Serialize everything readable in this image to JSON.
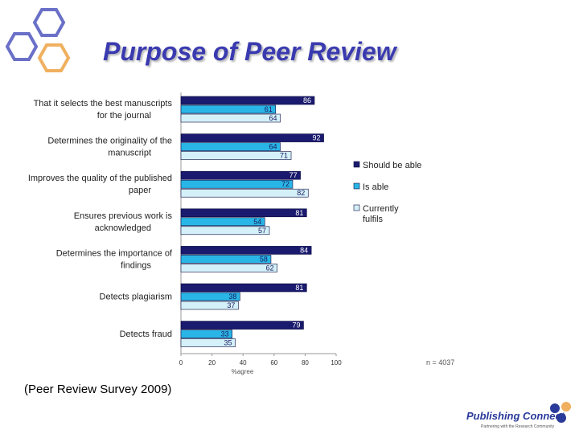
{
  "slide": {
    "title": "Purpose of Peer Review",
    "citation": "(Peer Review Survey 2009)",
    "brand": "Publishing Connect",
    "brand_tagline": "Partnering with the Research Community"
  },
  "colors": {
    "should_be_able": "#1a1a6e",
    "is_able": "#29b6e6",
    "currently_fulfils": "#d4f0f8",
    "title": "#3a3ab0",
    "hex_blue": "#6a70c8",
    "hex_orange": "#f0b060"
  },
  "chart_data": {
    "type": "bar",
    "orientation": "horizontal",
    "categories": [
      [
        "That it selects the best manuscripts",
        "for the journal"
      ],
      [
        "Determines the originality of the",
        "manuscript"
      ],
      [
        "Improves the quality of the published",
        "paper"
      ],
      [
        "Ensures previous work is",
        "acknowledged"
      ],
      [
        "Determines the importance of",
        "findings"
      ],
      [
        "Detects plagiarism"
      ],
      [
        "Detects fraud"
      ]
    ],
    "series": [
      {
        "name": "Should be able",
        "legend_lines": [
          "Should be able"
        ],
        "values": [
          86,
          92,
          77,
          81,
          84,
          81,
          79
        ]
      },
      {
        "name": "Is able",
        "legend_lines": [
          "Is able"
        ],
        "values": [
          61,
          64,
          72,
          54,
          58,
          38,
          33
        ]
      },
      {
        "name": "Currently fulfils",
        "legend_lines": [
          "Currently",
          "fulfils"
        ],
        "values": [
          64,
          71,
          82,
          57,
          62,
          37,
          35
        ]
      }
    ],
    "xticks": [
      "0",
      "20",
      "40",
      "60",
      "80",
      "100"
    ],
    "xlim": [
      0,
      100
    ],
    "xlabel": "%agree",
    "note": "n = 4037",
    "legend_position": "right"
  }
}
